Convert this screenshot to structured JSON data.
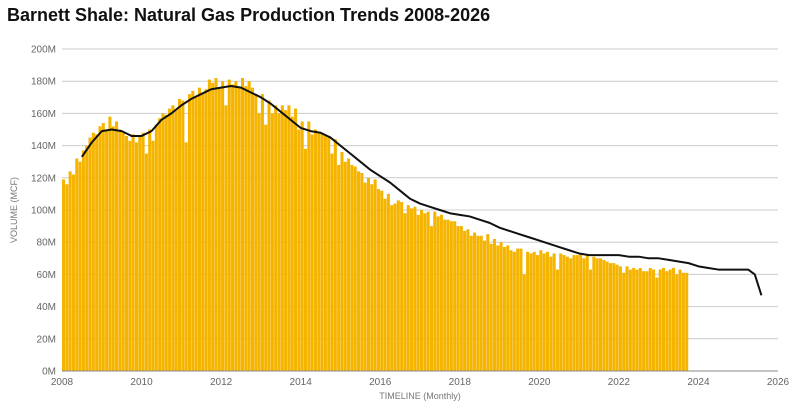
{
  "chart_data": {
    "type": "bar",
    "title": "Barnett Shale: Natural Gas Production Trends 2008-2026",
    "xlabel": "TIMELINE (Monthly)",
    "ylabel": "VOLUME (MCF)",
    "xlim": [
      2008,
      2026
    ],
    "ylim": [
      0,
      200000000
    ],
    "x_ticks": [
      "2008",
      "2010",
      "2012",
      "2014",
      "2016",
      "2018",
      "2020",
      "2022",
      "2024",
      "2026"
    ],
    "y_ticks": [
      "0M",
      "20M",
      "40M",
      "60M",
      "80M",
      "100M",
      "120M",
      "140M",
      "160M",
      "180M",
      "200M"
    ],
    "grid": true,
    "legend": "none",
    "colors": {
      "bars": "#F5B400",
      "trend": "#111111",
      "grid": "#cccccc"
    },
    "series": [
      {
        "kind": "monthly_bars",
        "start": "2008-01",
        "values_mcf": [
          119000000,
          116000000,
          124000000,
          122000000,
          132000000,
          130000000,
          137000000,
          140000000,
          145000000,
          148000000,
          147000000,
          152000000,
          154000000,
          150000000,
          158000000,
          152000000,
          155000000,
          150000000,
          148000000,
          146000000,
          143000000,
          147000000,
          142000000,
          146000000,
          148000000,
          135000000,
          150000000,
          143000000,
          153000000,
          157000000,
          160000000,
          159000000,
          163000000,
          165000000,
          162000000,
          169000000,
          168000000,
          142000000,
          172000000,
          174000000,
          170000000,
          176000000,
          173000000,
          175000000,
          181000000,
          179000000,
          182000000,
          176000000,
          180000000,
          165000000,
          181000000,
          178000000,
          180000000,
          176000000,
          182000000,
          177000000,
          180000000,
          176000000,
          172000000,
          160000000,
          172000000,
          153000000,
          168000000,
          160000000,
          165000000,
          160000000,
          165000000,
          162000000,
          165000000,
          158000000,
          163000000,
          150000000,
          155000000,
          138000000,
          155000000,
          147000000,
          150000000,
          148000000,
          148000000,
          146000000,
          146000000,
          135000000,
          144000000,
          128000000,
          136000000,
          130000000,
          132000000,
          128000000,
          127000000,
          124000000,
          123000000,
          117000000,
          120000000,
          116000000,
          119000000,
          113000000,
          112000000,
          107000000,
          110000000,
          103000000,
          104000000,
          106000000,
          105000000,
          98000000,
          103000000,
          101000000,
          102000000,
          97000000,
          100000000,
          98000000,
          99000000,
          90000000,
          99000000,
          96000000,
          97000000,
          94000000,
          94000000,
          93000000,
          93000000,
          90000000,
          90000000,
          87000000,
          88000000,
          84000000,
          86000000,
          84000000,
          84000000,
          81000000,
          85000000,
          79000000,
          82000000,
          78000000,
          80000000,
          77000000,
          78000000,
          75000000,
          74000000,
          76000000,
          76000000,
          60000000,
          74000000,
          73000000,
          74000000,
          72000000,
          75000000,
          73000000,
          74000000,
          71000000,
          73000000,
          63000000,
          73000000,
          72000000,
          71000000,
          70000000,
          72000000,
          72000000,
          73000000,
          70000000,
          72000000,
          63000000,
          71000000,
          70000000,
          70000000,
          69000000,
          68000000,
          67000000,
          67000000,
          66000000,
          65000000,
          61000000,
          65000000,
          63000000,
          64000000,
          63000000,
          64000000,
          62000000,
          62000000,
          64000000,
          63000000,
          58000000,
          63000000,
          64000000,
          62000000,
          63000000,
          64000000,
          60000000,
          63000000,
          61000000,
          61000000
        ]
      },
      {
        "kind": "trend_line",
        "points": [
          [
            "2008-07",
            133000000
          ],
          [
            "2008-10",
            142000000
          ],
          [
            "2009-01",
            149000000
          ],
          [
            "2009-04",
            150000000
          ],
          [
            "2009-07",
            149000000
          ],
          [
            "2009-10",
            146000000
          ],
          [
            "2010-01",
            146000000
          ],
          [
            "2010-04",
            149000000
          ],
          [
            "2010-07",
            156000000
          ],
          [
            "2010-10",
            160000000
          ],
          [
            "2011-01",
            165000000
          ],
          [
            "2011-04",
            169000000
          ],
          [
            "2011-07",
            172000000
          ],
          [
            "2011-10",
            175000000
          ],
          [
            "2012-01",
            176000000
          ],
          [
            "2012-04",
            177000000
          ],
          [
            "2012-07",
            176000000
          ],
          [
            "2012-10",
            173000000
          ],
          [
            "2013-01",
            170000000
          ],
          [
            "2013-04",
            166000000
          ],
          [
            "2013-07",
            161000000
          ],
          [
            "2013-10",
            156000000
          ],
          [
            "2014-01",
            151000000
          ],
          [
            "2014-04",
            149000000
          ],
          [
            "2014-07",
            148000000
          ],
          [
            "2014-10",
            145000000
          ],
          [
            "2015-01",
            140000000
          ],
          [
            "2015-04",
            135000000
          ],
          [
            "2015-07",
            130000000
          ],
          [
            "2015-10",
            125000000
          ],
          [
            "2016-01",
            121000000
          ],
          [
            "2016-04",
            117000000
          ],
          [
            "2016-07",
            112000000
          ],
          [
            "2016-10",
            107000000
          ],
          [
            "2017-01",
            104000000
          ],
          [
            "2017-04",
            102000000
          ],
          [
            "2017-07",
            100000000
          ],
          [
            "2017-10",
            98000000
          ],
          [
            "2018-01",
            97000000
          ],
          [
            "2018-04",
            96000000
          ],
          [
            "2018-07",
            94000000
          ],
          [
            "2018-10",
            92000000
          ],
          [
            "2019-01",
            89000000
          ],
          [
            "2019-04",
            87000000
          ],
          [
            "2019-07",
            85000000
          ],
          [
            "2019-10",
            83000000
          ],
          [
            "2020-01",
            81000000
          ],
          [
            "2020-04",
            79000000
          ],
          [
            "2020-07",
            77000000
          ],
          [
            "2020-10",
            75000000
          ],
          [
            "2021-01",
            73000000
          ],
          [
            "2021-04",
            72000000
          ],
          [
            "2021-07",
            72000000
          ],
          [
            "2021-10",
            72000000
          ],
          [
            "2022-01",
            72000000
          ],
          [
            "2022-04",
            71000000
          ],
          [
            "2022-07",
            71000000
          ],
          [
            "2022-10",
            70000000
          ],
          [
            "2023-01",
            70000000
          ],
          [
            "2023-04",
            69000000
          ],
          [
            "2023-07",
            68000000
          ],
          [
            "2023-10",
            67000000
          ],
          [
            "2024-01",
            65000000
          ],
          [
            "2024-04",
            64000000
          ],
          [
            "2024-07",
            63000000
          ],
          [
            "2024-10",
            63000000
          ],
          [
            "2025-01",
            63000000
          ],
          [
            "2025-04",
            63000000
          ],
          [
            "2025-06",
            60000000
          ],
          [
            "2025-08",
            47000000
          ]
        ]
      }
    ]
  }
}
